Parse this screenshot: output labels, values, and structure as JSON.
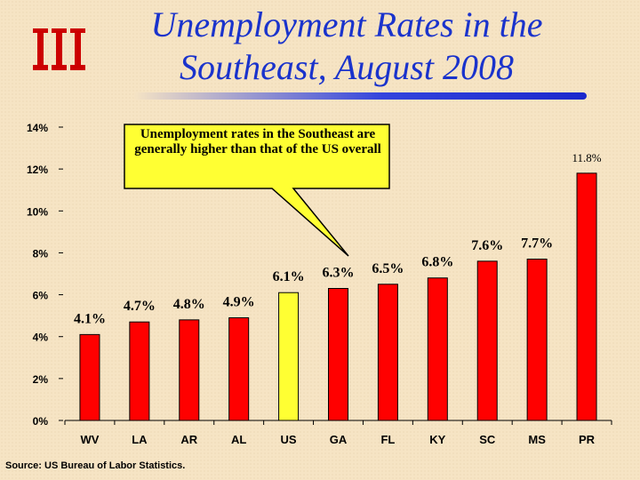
{
  "slide": {
    "title_line1": "Unemployment Rates in the",
    "title_line2": "Southeast, August 2008",
    "logo_icon": "columns-logo-icon",
    "callout": "Unemployment rates in the Southeast are generally higher than that of the US overall",
    "source": "Source: US Bureau of Labor Statistics."
  },
  "colors": {
    "bar": "#ff0000",
    "highlight": "#ffff33",
    "title": "#1a33cc"
  },
  "chart_data": {
    "type": "bar",
    "categories": [
      "WV",
      "LA",
      "AR",
      "AL",
      "US",
      "GA",
      "FL",
      "KY",
      "SC",
      "MS",
      "PR"
    ],
    "values": [
      4.1,
      4.7,
      4.8,
      4.9,
      6.1,
      6.3,
      6.5,
      6.8,
      7.6,
      7.7,
      11.8
    ],
    "data_labels": [
      "4.1%",
      "4.7%",
      "4.8%",
      "4.9%",
      "6.1%",
      "6.3%",
      "6.5%",
      "6.8%",
      "7.6%",
      "7.7%",
      "11.8%"
    ],
    "highlight_category": "US",
    "ylim": [
      0,
      14
    ],
    "yticks": [
      0,
      2,
      4,
      6,
      8,
      10,
      12,
      14
    ],
    "ytick_labels": [
      "0%",
      "2%",
      "4%",
      "6%",
      "8%",
      "10%",
      "12%",
      "14%"
    ],
    "grid": false,
    "legend": "none"
  }
}
